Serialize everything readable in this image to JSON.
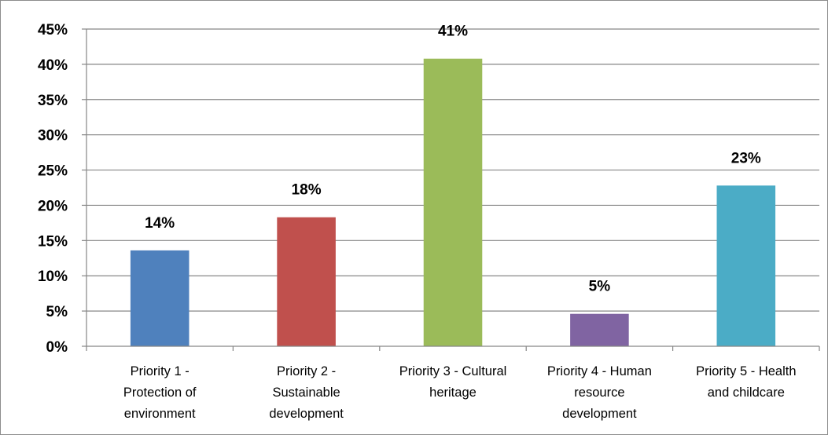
{
  "chart_data": {
    "type": "bar",
    "title": "",
    "xlabel": "",
    "ylabel": "",
    "ylim": [
      0,
      45
    ],
    "y_ticks": [
      0,
      5,
      10,
      15,
      20,
      25,
      30,
      35,
      40,
      45
    ],
    "y_tick_suffix": "%",
    "grid": true,
    "legend": "none",
    "categories": [
      [
        "Priority 1 -",
        "Protection of",
        "environment"
      ],
      [
        "Priority 2 -",
        "Sustainable",
        "development"
      ],
      [
        "Priority 3 - Cultural",
        "heritage"
      ],
      [
        "Priority 4 - Human",
        "resource",
        "development"
      ],
      [
        "Priority 5 - Health",
        "and childcare"
      ]
    ],
    "values": [
      13.6,
      18.3,
      40.8,
      4.6,
      22.8
    ],
    "data_labels": [
      "14%",
      "18%",
      "41%",
      "5%",
      "23%"
    ],
    "colors": [
      "#4f81bd",
      "#c0504d",
      "#9bbb59",
      "#8064a2",
      "#4bacc6"
    ]
  }
}
